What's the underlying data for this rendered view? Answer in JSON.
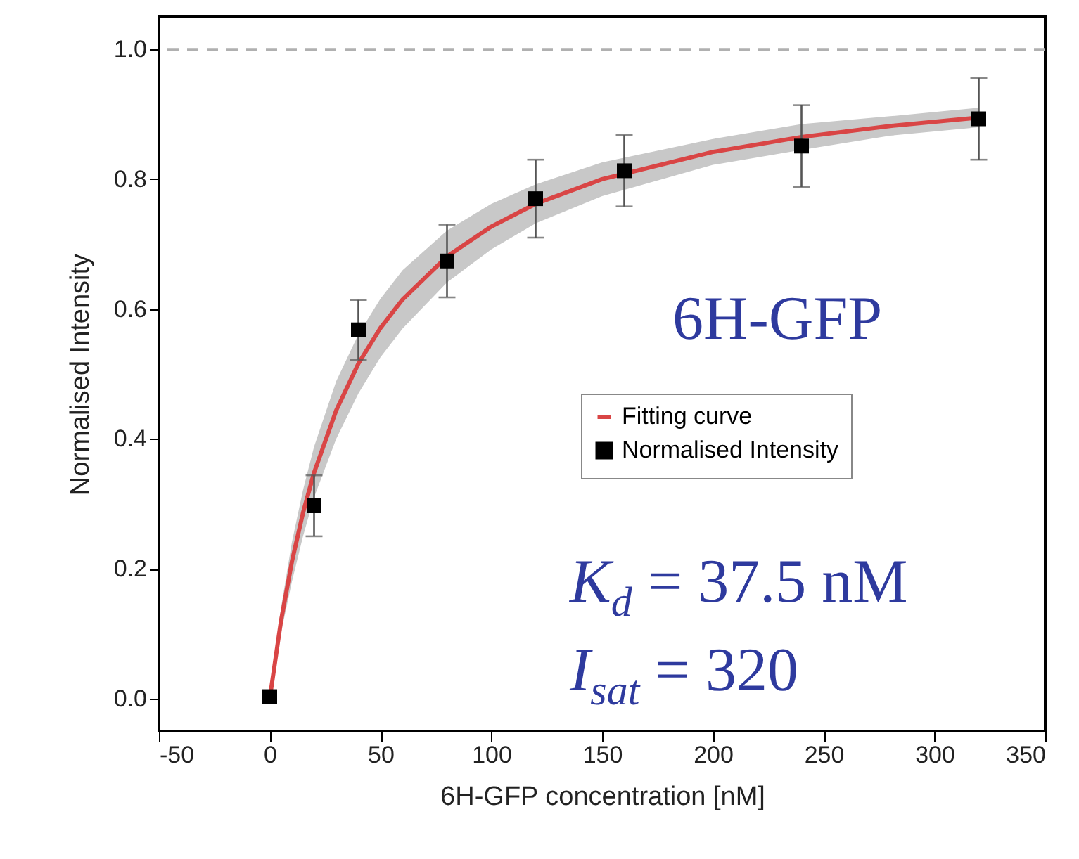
{
  "chart_data": {
    "type": "scatter",
    "xlabel": "6H-GFP concentration [nM]",
    "ylabel": "Normalised Intensity",
    "xlim": [
      -50,
      350
    ],
    "xticks": [
      -50,
      0,
      50,
      100,
      150,
      200,
      250,
      300,
      350
    ],
    "ylim": [
      -0.05,
      1.05
    ],
    "yticks": [
      {
        "value": 0,
        "label": "0.0"
      },
      0.2,
      0.4,
      0.6,
      0.8,
      {
        "value": 1,
        "label": "1.0"
      }
    ],
    "grid": false,
    "legend": "right",
    "series": [
      {
        "name": "Fitting curve",
        "type": "line",
        "color": "#d94545",
        "marker": "none",
        "line_style": "solid",
        "x": [
          0,
          5,
          10,
          15,
          20,
          30,
          40,
          50,
          60,
          80,
          100,
          120,
          150,
          200,
          240,
          280,
          320
        ],
        "values": [
          0,
          0.118,
          0.211,
          0.286,
          0.348,
          0.444,
          0.516,
          0.571,
          0.615,
          0.681,
          0.727,
          0.762,
          0.8,
          0.842,
          0.865,
          0.882,
          0.895
        ],
        "lower": [
          0,
          0.1,
          0.18,
          0.25,
          0.31,
          0.4,
          0.47,
          0.526,
          0.57,
          0.641,
          0.692,
          0.732,
          0.774,
          0.822,
          0.845,
          0.867,
          0.88
        ],
        "upper": [
          0,
          0.138,
          0.241,
          0.321,
          0.388,
          0.489,
          0.561,
          0.616,
          0.66,
          0.721,
          0.762,
          0.792,
          0.826,
          0.862,
          0.885,
          0.897,
          0.91
        ]
      },
      {
        "name": "Normalised Intensity",
        "color": "#000000",
        "marker": "square",
        "x": [
          0,
          20,
          40,
          80,
          120,
          160,
          240,
          320
        ],
        "values": [
          0.003,
          0.297,
          0.568,
          0.674,
          0.77,
          0.813,
          0.851,
          0.893
        ],
        "errors": [
          null,
          0.047,
          0.046,
          0.056,
          0.06,
          0.055,
          0.063,
          0.063
        ]
      }
    ],
    "ref_lines": [
      {
        "axis": "y",
        "value": 1,
        "color": "#b0b0b0",
        "line_style": "dashed"
      }
    ],
    "annotations": [
      "6H-GFP",
      "K$_{d}$ = 37.5 nM",
      "I$_{sat}$ = 320"
    ]
  }
}
